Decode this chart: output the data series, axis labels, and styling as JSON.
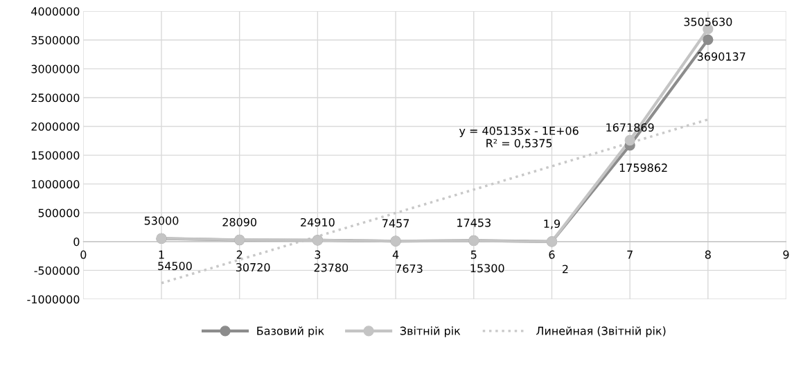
{
  "chart_data": {
    "type": "line",
    "x": [
      1,
      2,
      3,
      4,
      5,
      6,
      7,
      8
    ],
    "series": [
      {
        "name": "Базовий рік",
        "color": "#8c8c8c",
        "values": [
          53000,
          28090,
          24910,
          7457,
          17453,
          1.9,
          1671869,
          3505630
        ],
        "value_labels": [
          "53000",
          "28090",
          "24910",
          "7457",
          "17453",
          "1,9",
          "1671869",
          "3505630"
        ]
      },
      {
        "name": "Звітній рік",
        "color": "#c4c4c4",
        "values": [
          54500,
          30720,
          23780,
          7673,
          15300,
          2,
          1759862,
          3690137
        ],
        "value_labels": [
          "54500",
          "30720",
          "23780",
          "7673",
          "15300",
          "2",
          "1759862",
          "3690137"
        ]
      },
      {
        "name": "Линейная (Звітній рік)",
        "color": "#c8c8c8",
        "x": [
          1,
          8
        ],
        "values": [
          -720000,
          2120000
        ],
        "line_style": "dotted",
        "marker": "none"
      }
    ],
    "xlim": [
      0,
      9
    ],
    "xticks": [
      0,
      1,
      2,
      3,
      4,
      5,
      6,
      7,
      8,
      9
    ],
    "ylim": [
      -1000000,
      4000000
    ],
    "yticks": [
      -1000000,
      -500000,
      0,
      500000,
      1000000,
      1500000,
      2000000,
      2500000,
      3000000,
      3500000,
      4000000
    ],
    "grid": true,
    "legend": "bottom",
    "marker": "circle",
    "line_style": "solid",
    "annotations": [
      "y = 405135x - 1E+06\nR² = 0,5375"
    ]
  }
}
